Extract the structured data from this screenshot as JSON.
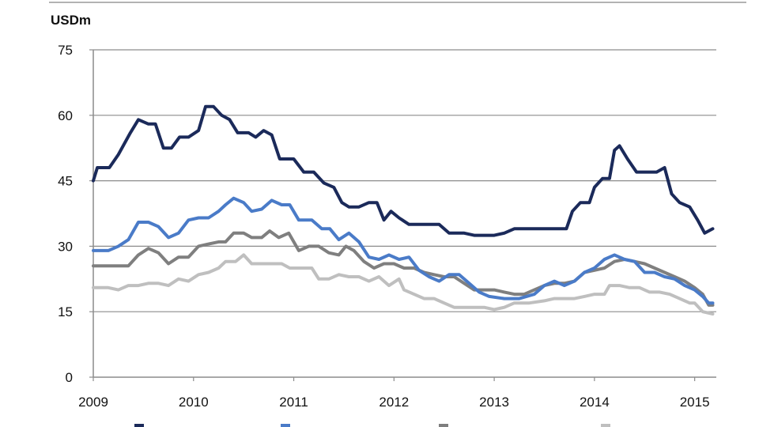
{
  "chart_data": {
    "type": "line",
    "title": "",
    "xlabel": "",
    "ylabel": "USDm",
    "ylim": [
      0,
      75
    ],
    "xlim": [
      2009,
      2015.2
    ],
    "yticks": [
      "0",
      "15",
      "30",
      "45",
      "60",
      "75"
    ],
    "xticks": [
      "2009",
      "2010",
      "2011",
      "2012",
      "2013",
      "2014",
      "2015"
    ],
    "grid": "horizontal",
    "legend_position": "bottom",
    "series": [
      {
        "color": "#1b2a5a",
        "points": [
          [
            2009.0,
            45.0
          ],
          [
            2009.04,
            48.0
          ],
          [
            2009.16,
            48.0
          ],
          [
            2009.25,
            51.0
          ],
          [
            2009.37,
            56.0
          ],
          [
            2009.45,
            59.0
          ],
          [
            2009.55,
            58.0
          ],
          [
            2009.62,
            58.0
          ],
          [
            2009.7,
            52.5
          ],
          [
            2009.78,
            52.5
          ],
          [
            2009.86,
            55.0
          ],
          [
            2009.95,
            55.0
          ],
          [
            2010.05,
            56.5
          ],
          [
            2010.12,
            62.0
          ],
          [
            2010.2,
            62.0
          ],
          [
            2010.28,
            60.0
          ],
          [
            2010.36,
            59.0
          ],
          [
            2010.44,
            56.0
          ],
          [
            2010.55,
            56.0
          ],
          [
            2010.62,
            55.0
          ],
          [
            2010.7,
            56.5
          ],
          [
            2010.78,
            55.5
          ],
          [
            2010.86,
            50.0
          ],
          [
            2011.0,
            50.0
          ],
          [
            2011.1,
            47.0
          ],
          [
            2011.2,
            47.0
          ],
          [
            2011.3,
            44.5
          ],
          [
            2011.4,
            43.5
          ],
          [
            2011.48,
            40.0
          ],
          [
            2011.55,
            39.0
          ],
          [
            2011.65,
            39.0
          ],
          [
            2011.75,
            40.0
          ],
          [
            2011.83,
            40.0
          ],
          [
            2011.9,
            36.0
          ],
          [
            2011.97,
            38.0
          ],
          [
            2012.05,
            36.5
          ],
          [
            2012.15,
            35.0
          ],
          [
            2012.3,
            35.0
          ],
          [
            2012.45,
            35.0
          ],
          [
            2012.55,
            33.0
          ],
          [
            2012.7,
            33.0
          ],
          [
            2012.8,
            32.5
          ],
          [
            2013.0,
            32.5
          ],
          [
            2013.1,
            33.0
          ],
          [
            2013.2,
            34.0
          ],
          [
            2013.4,
            34.0
          ],
          [
            2013.6,
            34.0
          ],
          [
            2013.72,
            34.0
          ],
          [
            2013.78,
            38.0
          ],
          [
            2013.86,
            40.0
          ],
          [
            2013.95,
            40.0
          ],
          [
            2014.0,
            43.5
          ],
          [
            2014.08,
            45.5
          ],
          [
            2014.15,
            45.5
          ],
          [
            2014.2,
            52.0
          ],
          [
            2014.25,
            53.0
          ],
          [
            2014.33,
            50.0
          ],
          [
            2014.42,
            47.0
          ],
          [
            2014.52,
            47.0
          ],
          [
            2014.62,
            47.0
          ],
          [
            2014.7,
            48.0
          ],
          [
            2014.77,
            42.0
          ],
          [
            2014.85,
            40.0
          ],
          [
            2014.95,
            39.0
          ],
          [
            2015.03,
            36.0
          ],
          [
            2015.1,
            33.0
          ],
          [
            2015.18,
            34.0
          ]
        ]
      },
      {
        "color": "#4a7bc8",
        "points": [
          [
            2009.0,
            29.0
          ],
          [
            2009.15,
            29.0
          ],
          [
            2009.25,
            30.0
          ],
          [
            2009.35,
            31.5
          ],
          [
            2009.45,
            35.5
          ],
          [
            2009.55,
            35.5
          ],
          [
            2009.65,
            34.5
          ],
          [
            2009.75,
            32.0
          ],
          [
            2009.85,
            33.0
          ],
          [
            2009.95,
            36.0
          ],
          [
            2010.05,
            36.5
          ],
          [
            2010.15,
            36.5
          ],
          [
            2010.25,
            38.0
          ],
          [
            2010.32,
            39.5
          ],
          [
            2010.4,
            41.0
          ],
          [
            2010.5,
            40.0
          ],
          [
            2010.58,
            38.0
          ],
          [
            2010.68,
            38.5
          ],
          [
            2010.78,
            40.5
          ],
          [
            2010.88,
            39.5
          ],
          [
            2010.96,
            39.5
          ],
          [
            2011.05,
            36.0
          ],
          [
            2011.18,
            36.0
          ],
          [
            2011.28,
            34.0
          ],
          [
            2011.36,
            34.0
          ],
          [
            2011.45,
            31.5
          ],
          [
            2011.55,
            33.0
          ],
          [
            2011.65,
            31.0
          ],
          [
            2011.75,
            27.5
          ],
          [
            2011.85,
            27.0
          ],
          [
            2011.95,
            28.0
          ],
          [
            2012.05,
            27.0
          ],
          [
            2012.15,
            27.5
          ],
          [
            2012.25,
            24.5
          ],
          [
            2012.35,
            23.0
          ],
          [
            2012.45,
            22.0
          ],
          [
            2012.55,
            23.5
          ],
          [
            2012.65,
            23.5
          ],
          [
            2012.75,
            21.5
          ],
          [
            2012.85,
            19.5
          ],
          [
            2012.95,
            18.5
          ],
          [
            2013.1,
            18.0
          ],
          [
            2013.25,
            18.0
          ],
          [
            2013.4,
            19.0
          ],
          [
            2013.5,
            21.0
          ],
          [
            2013.6,
            22.0
          ],
          [
            2013.7,
            21.0
          ],
          [
            2013.8,
            22.0
          ],
          [
            2013.9,
            24.0
          ],
          [
            2014.0,
            25.0
          ],
          [
            2014.1,
            27.0
          ],
          [
            2014.2,
            28.0
          ],
          [
            2014.3,
            27.0
          ],
          [
            2014.4,
            26.5
          ],
          [
            2014.5,
            24.0
          ],
          [
            2014.6,
            24.0
          ],
          [
            2014.7,
            23.0
          ],
          [
            2014.8,
            22.5
          ],
          [
            2014.9,
            21.0
          ],
          [
            2015.0,
            20.0
          ],
          [
            2015.08,
            18.5
          ],
          [
            2015.14,
            17.0
          ],
          [
            2015.18,
            17.0
          ]
        ]
      },
      {
        "color": "#7f7f7f",
        "points": [
          [
            2009.0,
            25.5
          ],
          [
            2009.2,
            25.5
          ],
          [
            2009.35,
            25.5
          ],
          [
            2009.45,
            28.0
          ],
          [
            2009.55,
            29.5
          ],
          [
            2009.65,
            28.5
          ],
          [
            2009.75,
            26.0
          ],
          [
            2009.85,
            27.5
          ],
          [
            2009.95,
            27.5
          ],
          [
            2010.05,
            30.0
          ],
          [
            2010.15,
            30.5
          ],
          [
            2010.25,
            31.0
          ],
          [
            2010.32,
            31.0
          ],
          [
            2010.4,
            33.0
          ],
          [
            2010.5,
            33.0
          ],
          [
            2010.58,
            32.0
          ],
          [
            2010.68,
            32.0
          ],
          [
            2010.76,
            33.5
          ],
          [
            2010.85,
            32.0
          ],
          [
            2010.95,
            33.0
          ],
          [
            2011.05,
            29.0
          ],
          [
            2011.15,
            30.0
          ],
          [
            2011.25,
            30.0
          ],
          [
            2011.35,
            28.5
          ],
          [
            2011.45,
            28.0
          ],
          [
            2011.52,
            30.0
          ],
          [
            2011.6,
            29.0
          ],
          [
            2011.7,
            26.5
          ],
          [
            2011.8,
            25.0
          ],
          [
            2011.9,
            26.0
          ],
          [
            2012.0,
            26.0
          ],
          [
            2012.1,
            25.0
          ],
          [
            2012.2,
            25.0
          ],
          [
            2012.3,
            24.0
          ],
          [
            2012.4,
            23.5
          ],
          [
            2012.5,
            23.0
          ],
          [
            2012.6,
            23.0
          ],
          [
            2012.7,
            21.5
          ],
          [
            2012.8,
            20.0
          ],
          [
            2012.9,
            20.0
          ],
          [
            2013.0,
            20.0
          ],
          [
            2013.1,
            19.5
          ],
          [
            2013.2,
            19.0
          ],
          [
            2013.3,
            19.0
          ],
          [
            2013.4,
            20.0
          ],
          [
            2013.5,
            21.0
          ],
          [
            2013.6,
            21.5
          ],
          [
            2013.7,
            21.5
          ],
          [
            2013.8,
            22.0
          ],
          [
            2013.9,
            24.0
          ],
          [
            2014.0,
            24.5
          ],
          [
            2014.1,
            25.0
          ],
          [
            2014.2,
            26.5
          ],
          [
            2014.3,
            27.0
          ],
          [
            2014.4,
            26.5
          ],
          [
            2014.5,
            26.0
          ],
          [
            2014.6,
            25.0
          ],
          [
            2014.7,
            24.0
          ],
          [
            2014.8,
            23.0
          ],
          [
            2014.9,
            22.0
          ],
          [
            2015.0,
            20.5
          ],
          [
            2015.08,
            19.0
          ],
          [
            2015.14,
            16.5
          ],
          [
            2015.18,
            16.5
          ]
        ]
      },
      {
        "color": "#bfbfbf",
        "points": [
          [
            2009.0,
            20.5
          ],
          [
            2009.15,
            20.5
          ],
          [
            2009.25,
            20.0
          ],
          [
            2009.35,
            21.0
          ],
          [
            2009.45,
            21.0
          ],
          [
            2009.55,
            21.5
          ],
          [
            2009.65,
            21.5
          ],
          [
            2009.75,
            21.0
          ],
          [
            2009.85,
            22.5
          ],
          [
            2009.95,
            22.0
          ],
          [
            2010.05,
            23.5
          ],
          [
            2010.15,
            24.0
          ],
          [
            2010.25,
            25.0
          ],
          [
            2010.32,
            26.5
          ],
          [
            2010.42,
            26.5
          ],
          [
            2010.5,
            28.0
          ],
          [
            2010.58,
            26.0
          ],
          [
            2010.68,
            26.0
          ],
          [
            2010.78,
            26.0
          ],
          [
            2010.88,
            26.0
          ],
          [
            2010.96,
            25.0
          ],
          [
            2011.05,
            25.0
          ],
          [
            2011.18,
            25.0
          ],
          [
            2011.25,
            22.5
          ],
          [
            2011.35,
            22.5
          ],
          [
            2011.45,
            23.5
          ],
          [
            2011.55,
            23.0
          ],
          [
            2011.65,
            23.0
          ],
          [
            2011.75,
            22.0
          ],
          [
            2011.85,
            23.0
          ],
          [
            2011.95,
            21.0
          ],
          [
            2012.05,
            22.5
          ],
          [
            2012.1,
            20.0
          ],
          [
            2012.2,
            19.0
          ],
          [
            2012.3,
            18.0
          ],
          [
            2012.4,
            18.0
          ],
          [
            2012.5,
            17.0
          ],
          [
            2012.6,
            16.0
          ],
          [
            2012.75,
            16.0
          ],
          [
            2012.9,
            16.0
          ],
          [
            2013.0,
            15.5
          ],
          [
            2013.1,
            16.0
          ],
          [
            2013.2,
            17.0
          ],
          [
            2013.35,
            17.0
          ],
          [
            2013.5,
            17.5
          ],
          [
            2013.6,
            18.0
          ],
          [
            2013.7,
            18.0
          ],
          [
            2013.8,
            18.0
          ],
          [
            2013.9,
            18.5
          ],
          [
            2014.0,
            19.0
          ],
          [
            2014.1,
            19.0
          ],
          [
            2014.15,
            21.0
          ],
          [
            2014.25,
            21.0
          ],
          [
            2014.35,
            20.5
          ],
          [
            2014.45,
            20.5
          ],
          [
            2014.55,
            19.5
          ],
          [
            2014.65,
            19.5
          ],
          [
            2014.75,
            19.0
          ],
          [
            2014.85,
            18.0
          ],
          [
            2014.95,
            17.0
          ],
          [
            2015.0,
            17.0
          ],
          [
            2015.08,
            15.0
          ],
          [
            2015.18,
            14.5
          ]
        ]
      }
    ]
  }
}
